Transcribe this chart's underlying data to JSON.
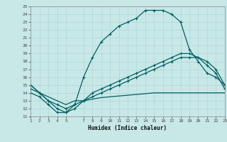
{
  "xlabel": "Humidex (Indice chaleur)",
  "background_color": "#c8e8e8",
  "grid_color": "#b0d4d4",
  "line_color": "#006060",
  "xlim": [
    1,
    23
  ],
  "ylim": [
    11,
    25
  ],
  "xticks": [
    1,
    2,
    3,
    4,
    5,
    7,
    8,
    9,
    10,
    11,
    12,
    13,
    14,
    15,
    16,
    17,
    18,
    19,
    20,
    21,
    22,
    23
  ],
  "yticks": [
    11,
    12,
    13,
    14,
    15,
    16,
    17,
    18,
    19,
    20,
    21,
    22,
    23,
    24,
    25
  ],
  "curve1_x": [
    1,
    2,
    3,
    4,
    5,
    6,
    7,
    8,
    9,
    10,
    11,
    12,
    13,
    14,
    15,
    16,
    17,
    18,
    19,
    20,
    21,
    22,
    23
  ],
  "curve1_y": [
    14,
    13.5,
    12.5,
    11.5,
    11.5,
    12.5,
    16,
    18.5,
    20.5,
    21.5,
    22.5,
    23,
    23.5,
    24.5,
    24.5,
    24.5,
    24,
    23,
    19.5,
    18,
    16.5,
    16,
    15
  ],
  "curve2_x": [
    1,
    2,
    3,
    4,
    5,
    6,
    7,
    8,
    9,
    10,
    11,
    12,
    13,
    14,
    15,
    16,
    17,
    18,
    19,
    20,
    21,
    22,
    23
  ],
  "curve2_y": [
    14.5,
    14,
    13,
    12.5,
    12,
    12.5,
    13,
    13.5,
    14,
    14.5,
    15,
    15.5,
    16,
    16.5,
    17,
    17.5,
    18,
    18.5,
    18.5,
    18.5,
    18,
    17,
    15
  ],
  "curve3_x": [
    1,
    2,
    3,
    4,
    5,
    6,
    7,
    8,
    9,
    10,
    11,
    12,
    13,
    14,
    15,
    16,
    17,
    18,
    19,
    20,
    21,
    22,
    23
  ],
  "curve3_y": [
    15,
    14,
    13,
    12,
    11.5,
    12,
    13,
    14,
    14.5,
    15,
    15.5,
    16,
    16.5,
    17,
    17.5,
    18,
    18.5,
    19,
    19,
    18.5,
    17.5,
    16.5,
    14.5
  ],
  "curve4_x": [
    1,
    2,
    3,
    4,
    5,
    6,
    7,
    8,
    9,
    10,
    11,
    12,
    13,
    14,
    15,
    16,
    17,
    18,
    19,
    20,
    21,
    22,
    23
  ],
  "curve4_y": [
    15,
    14,
    13.5,
    13,
    12.5,
    13,
    13,
    13.2,
    13.4,
    13.5,
    13.6,
    13.7,
    13.8,
    13.9,
    14,
    14,
    14,
    14,
    14,
    14,
    14,
    14,
    14
  ]
}
